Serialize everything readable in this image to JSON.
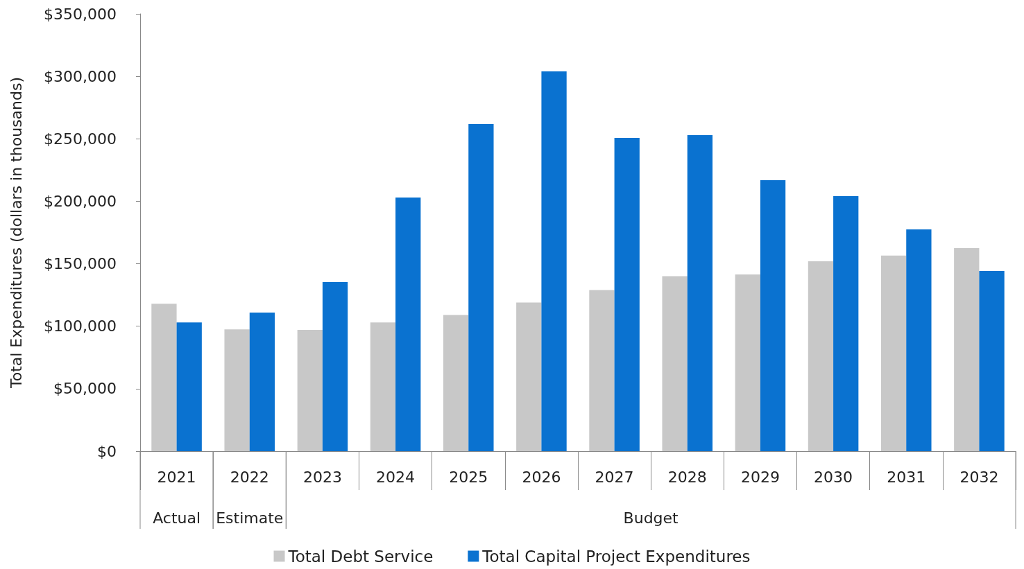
{
  "chart_data": {
    "type": "bar",
    "ylabel": "Total Expenditures (dollars in thousands)",
    "categories": [
      "2021",
      "2022",
      "2023",
      "2024",
      "2025",
      "2026",
      "2027",
      "2028",
      "2029",
      "2030",
      "2031",
      "2032"
    ],
    "series": [
      {
        "name": "Total Debt Service",
        "color": "#c8c8c8",
        "values": [
          118000,
          97500,
          97000,
          103000,
          109000,
          119000,
          129000,
          140000,
          141500,
          152000,
          156500,
          162500
        ]
      },
      {
        "name": "Total Capital Project Expenditures",
        "color": "#0a72d0",
        "values": [
          103000,
          111000,
          135300,
          203000,
          261800,
          304000,
          250700,
          253000,
          216900,
          204100,
          177500,
          144200
        ]
      }
    ],
    "ylim": [
      0,
      350000
    ],
    "yticks": [
      {
        "value": 0,
        "label": "$0"
      },
      {
        "value": 50000,
        "label": "$50,000"
      },
      {
        "value": 100000,
        "label": "$100,000"
      },
      {
        "value": 150000,
        "label": "$150,000"
      },
      {
        "value": 200000,
        "label": "$200,000"
      },
      {
        "value": 250000,
        "label": "$250,000"
      },
      {
        "value": 300000,
        "label": "$300,000"
      },
      {
        "value": 350000,
        "label": "$350,000"
      }
    ],
    "annotations": [
      "Actual",
      "Estimate",
      "Budget"
    ],
    "grid": false,
    "legend": "bottom"
  }
}
